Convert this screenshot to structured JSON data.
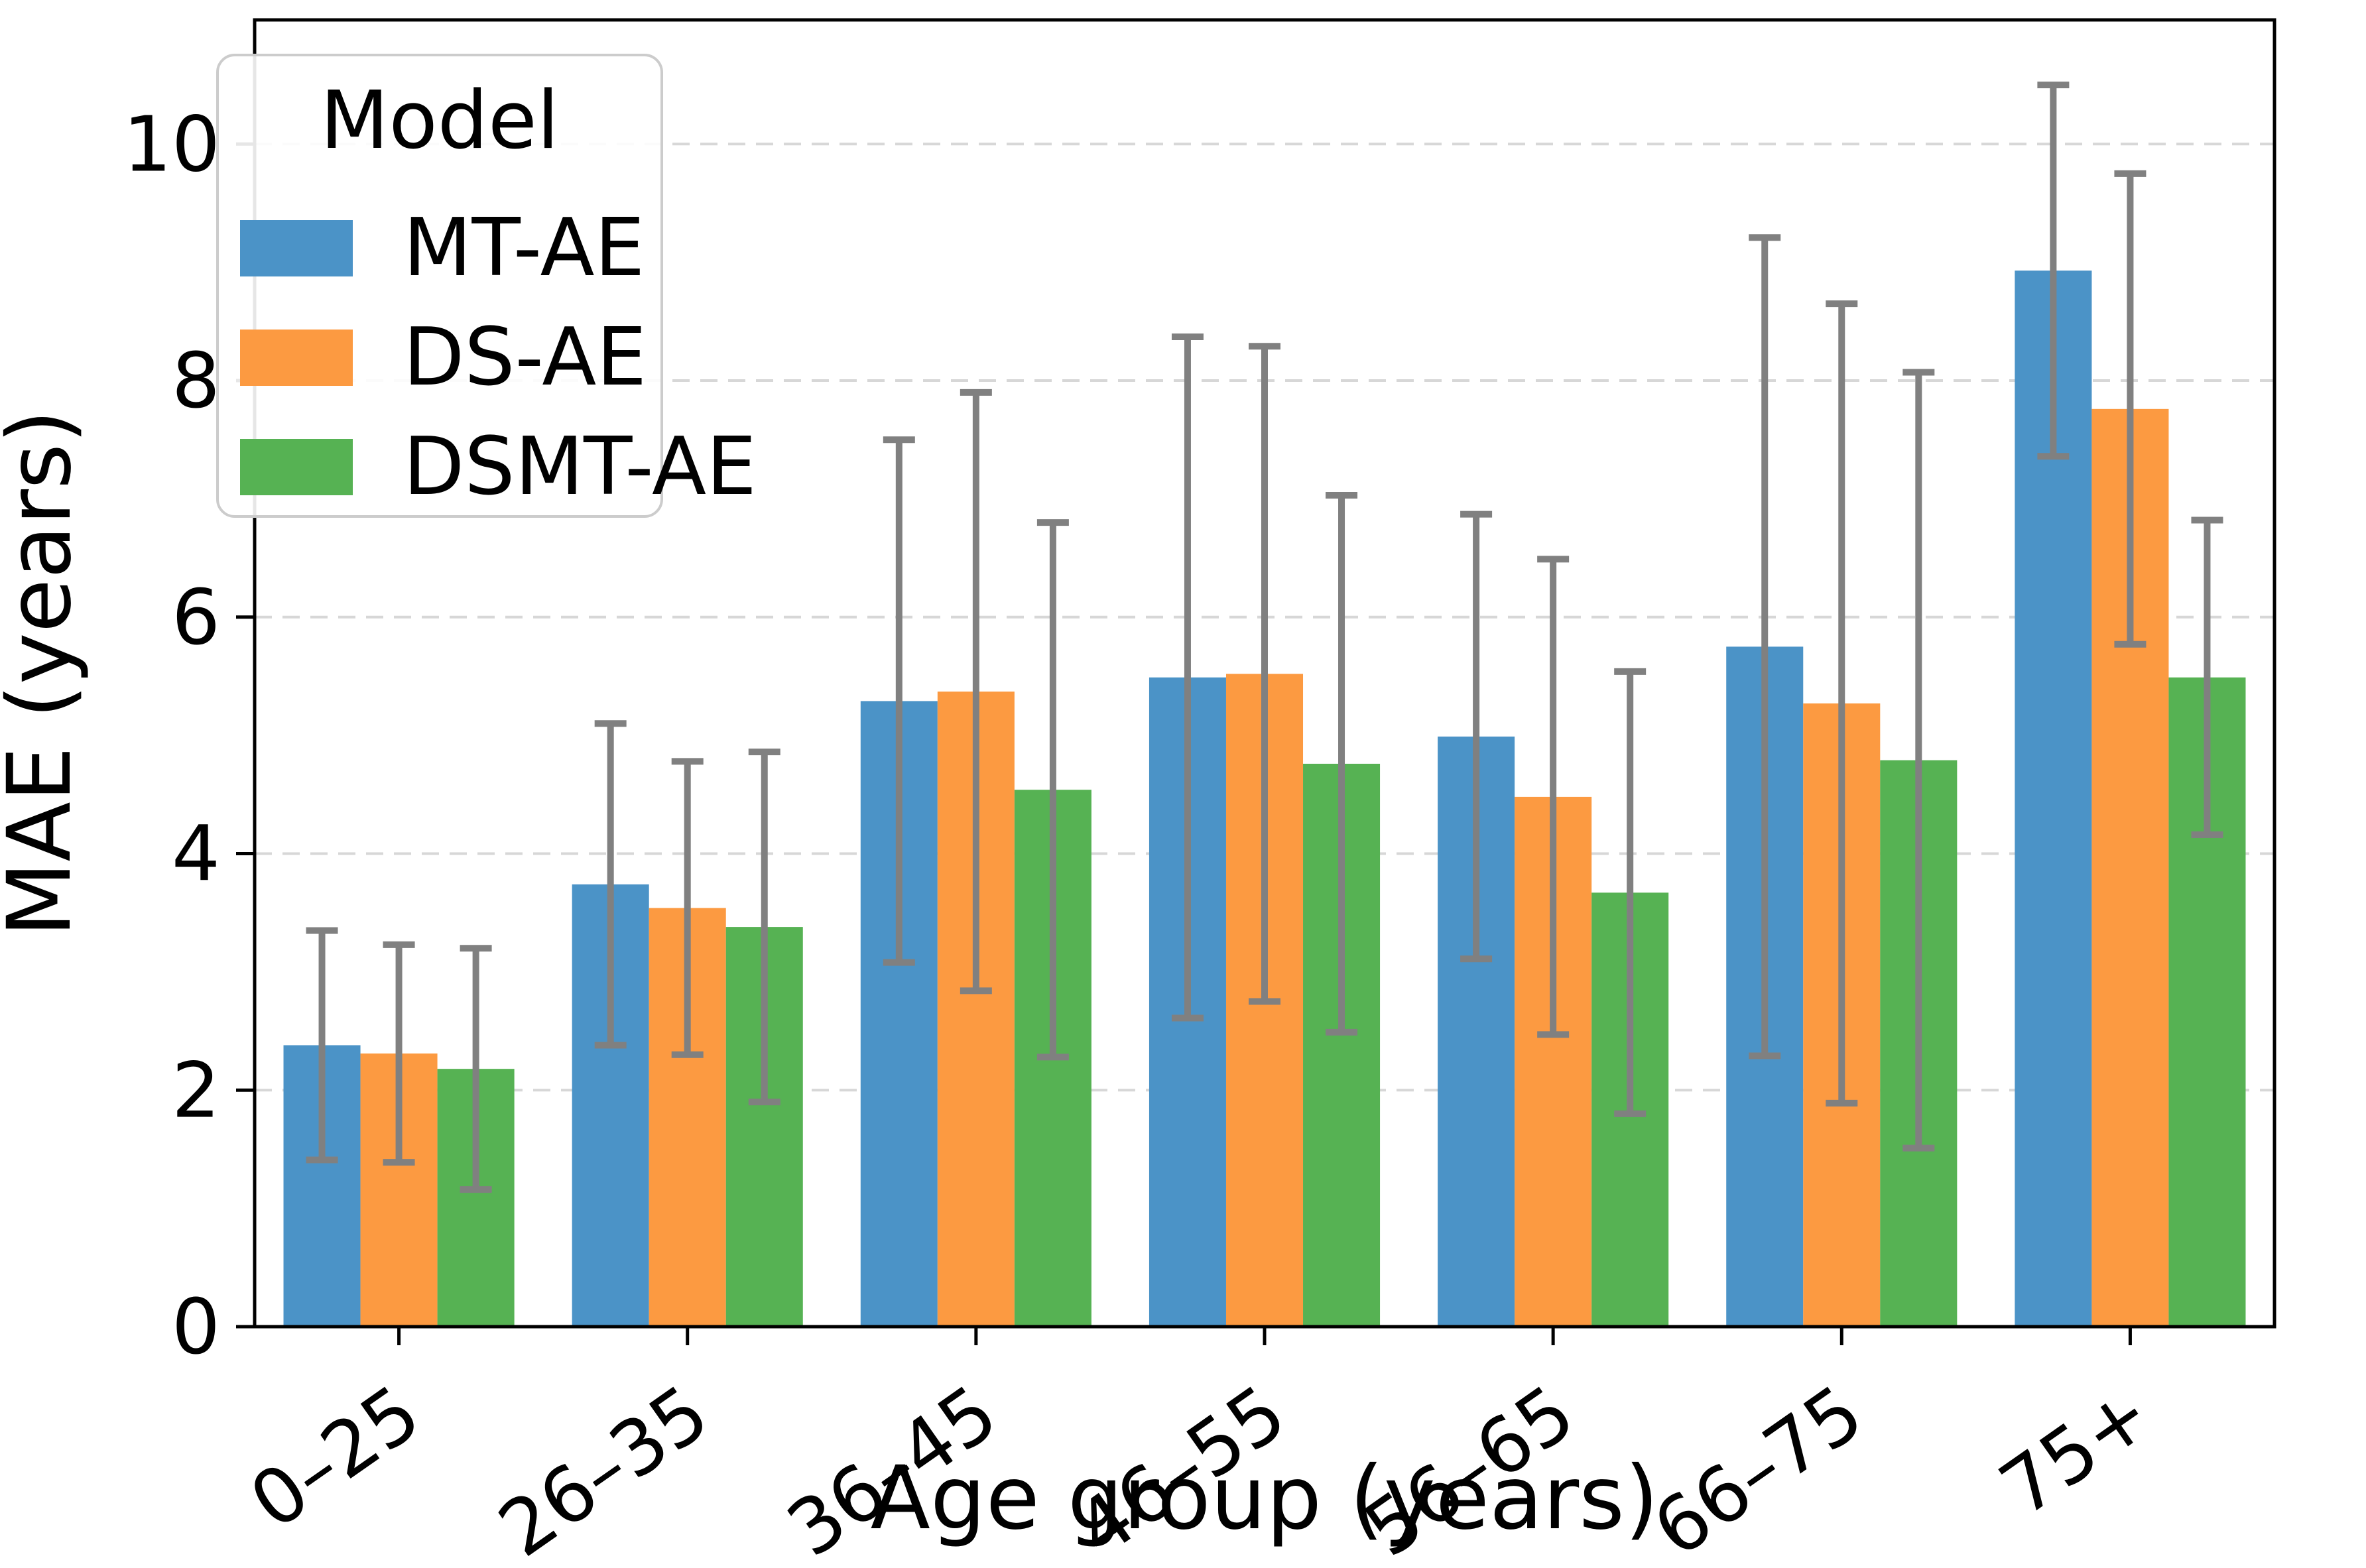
{
  "chart_data": {
    "type": "bar",
    "title": "",
    "xlabel": "Age group (years)",
    "ylabel": "MAE (years)",
    "categories": [
      "0–25",
      "26–35",
      "36–45",
      "46–55",
      "56–65",
      "66–75",
      "75+"
    ],
    "series": [
      {
        "name": "MT-AE",
        "color": "#4b93c7",
        "values": [
          2.38,
          3.74,
          5.29,
          5.49,
          4.99,
          5.75,
          8.93
        ],
        "errors": [
          0.97,
          1.36,
          2.21,
          2.88,
          1.88,
          3.46,
          1.57
        ]
      },
      {
        "name": "DS-AE",
        "color": "#fc9a41",
        "values": [
          2.31,
          3.54,
          5.37,
          5.52,
          4.48,
          5.27,
          7.76
        ],
        "errors": [
          0.92,
          1.24,
          2.53,
          2.77,
          2.01,
          3.38,
          1.99
        ]
      },
      {
        "name": "DSMT-AE",
        "color": "#56b253",
        "values": [
          2.18,
          3.38,
          4.54,
          4.76,
          3.67,
          4.79,
          5.49
        ],
        "errors": [
          1.02,
          1.48,
          2.26,
          2.27,
          1.87,
          3.28,
          1.33
        ]
      }
    ],
    "yticks": [
      0,
      2,
      4,
      6,
      8,
      10
    ],
    "ylim": [
      0,
      11.05
    ],
    "grid": "horizontal-dashed",
    "gridline_color": "#d7d7d7",
    "error_bar_color": "#808080",
    "legend": {
      "title": "Model",
      "position": "upper-left"
    },
    "xtick_rotation_deg": 35
  }
}
